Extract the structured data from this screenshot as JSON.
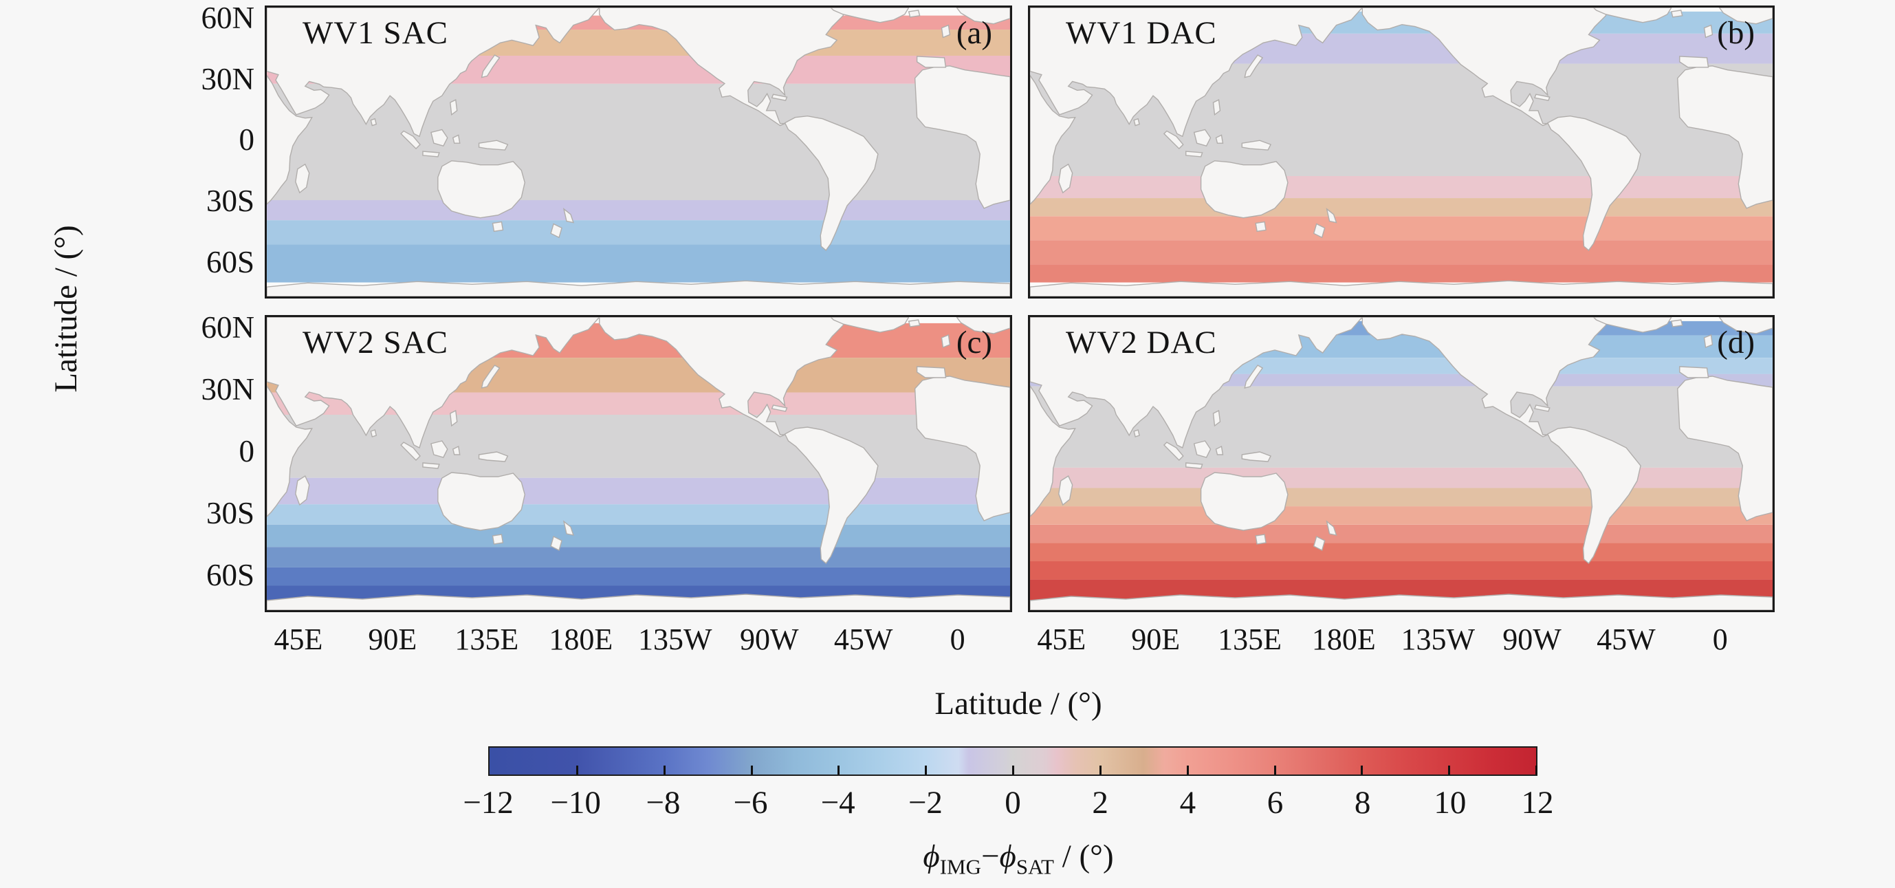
{
  "axes": {
    "y_label": "Latitude / (°)",
    "x_label": "Latitude / (°)",
    "y_ticks": [
      "60N",
      "30N",
      "0",
      "30S",
      "60S"
    ],
    "x_ticks": [
      "45E",
      "90E",
      "135E",
      "180E",
      "135W",
      "90W",
      "45W",
      "0"
    ]
  },
  "chart_data": {
    "type": "heatmap",
    "subtype": "four-panel global map (Pacific-centered) of zonal-mean phase difference, land shown white",
    "lat_range": [
      66,
      -78
    ],
    "lon_ticks_deg_east": [
      45,
      90,
      135,
      180,
      225,
      270,
      315,
      360
    ],
    "panels": [
      {
        "id": "a",
        "title": "WV1 SAC",
        "corner_label": "(a)",
        "bands": [
          {
            "lat_from": 62,
            "lat_to": 55,
            "value": 4,
            "color": "#f0a09e"
          },
          {
            "lat_from": 55,
            "lat_to": 42,
            "value": 2.5,
            "color": "#e5bf9c"
          },
          {
            "lat_from": 42,
            "lat_to": 28,
            "value": 1,
            "color": "#eebac4"
          },
          {
            "lat_from": 28,
            "lat_to": -30,
            "value": 0,
            "color": "#d5d4d5"
          },
          {
            "lat_from": -30,
            "lat_to": -40,
            "value": -1,
            "color": "#c8c4e6"
          },
          {
            "lat_from": -40,
            "lat_to": -52,
            "value": -3,
            "color": "#a6c9e5"
          },
          {
            "lat_from": -52,
            "lat_to": -71,
            "value": -4,
            "color": "#92bbde"
          }
        ]
      },
      {
        "id": "b",
        "title": "WV1 DAC",
        "corner_label": "(b)",
        "bands": [
          {
            "lat_from": 64,
            "lat_to": 53,
            "value": -3,
            "color": "#a6cbe6"
          },
          {
            "lat_from": 53,
            "lat_to": 38,
            "value": -1,
            "color": "#c8c5e5"
          },
          {
            "lat_from": 38,
            "lat_to": -18,
            "value": 0,
            "color": "#d5d4d5"
          },
          {
            "lat_from": -18,
            "lat_to": -29,
            "value": 1,
            "color": "#ebc7ce"
          },
          {
            "lat_from": -29,
            "lat_to": -38,
            "value": 2,
            "color": "#e4c1a3"
          },
          {
            "lat_from": -38,
            "lat_to": -50,
            "value": 4,
            "color": "#f1a694"
          },
          {
            "lat_from": -50,
            "lat_to": -62,
            "value": 5,
            "color": "#ec9486"
          },
          {
            "lat_from": -62,
            "lat_to": -71,
            "value": 6,
            "color": "#e88578"
          }
        ]
      },
      {
        "id": "c",
        "title": "WV2 SAC",
        "corner_label": "(c)",
        "bands": [
          {
            "lat_from": 63,
            "lat_to": 46,
            "value": 5,
            "color": "#ed9083"
          },
          {
            "lat_from": 46,
            "lat_to": 29,
            "value": 3,
            "color": "#e0b591"
          },
          {
            "lat_from": 29,
            "lat_to": 18,
            "value": 1,
            "color": "#eec2c8"
          },
          {
            "lat_from": 18,
            "lat_to": -13,
            "value": 0,
            "color": "#d5d4d5"
          },
          {
            "lat_from": -13,
            "lat_to": -26,
            "value": -1,
            "color": "#c8c4e6"
          },
          {
            "lat_from": -26,
            "lat_to": -36,
            "value": -3,
            "color": "#accee8"
          },
          {
            "lat_from": -36,
            "lat_to": -47,
            "value": -4.5,
            "color": "#8db7da"
          },
          {
            "lat_from": -47,
            "lat_to": -57,
            "value": -6,
            "color": "#7396cb"
          },
          {
            "lat_from": -57,
            "lat_to": -66,
            "value": -7.5,
            "color": "#5c7cc3"
          },
          {
            "lat_from": -66,
            "lat_to": -74,
            "value": -9,
            "color": "#4b67b6"
          }
        ]
      },
      {
        "id": "d",
        "title": "WV2 DAC",
        "corner_label": "(d)",
        "bands": [
          {
            "lat_from": 64,
            "lat_to": 57,
            "value": -5,
            "color": "#7fa6d8"
          },
          {
            "lat_from": 57,
            "lat_to": 46,
            "value": -4,
            "color": "#9bc3e3"
          },
          {
            "lat_from": 46,
            "lat_to": 38,
            "value": -2.5,
            "color": "#b2d1ea"
          },
          {
            "lat_from": 38,
            "lat_to": 32,
            "value": -1.5,
            "color": "#c4c4e4"
          },
          {
            "lat_from": 32,
            "lat_to": -8,
            "value": 0,
            "color": "#d5d4d5"
          },
          {
            "lat_from": -8,
            "lat_to": -18,
            "value": 1,
            "color": "#e9c6cc"
          },
          {
            "lat_from": -18,
            "lat_to": -27,
            "value": 2,
            "color": "#e2c1a4"
          },
          {
            "lat_from": -27,
            "lat_to": -36,
            "value": 3.5,
            "color": "#eeab97"
          },
          {
            "lat_from": -36,
            "lat_to": -45,
            "value": 5,
            "color": "#ea9285"
          },
          {
            "lat_from": -45,
            "lat_to": -54,
            "value": 6.5,
            "color": "#e57868"
          },
          {
            "lat_from": -54,
            "lat_to": -63,
            "value": 8,
            "color": "#de6056"
          },
          {
            "lat_from": -63,
            "lat_to": -74,
            "value": 10,
            "color": "#d14845"
          }
        ]
      }
    ],
    "colorbar": {
      "min": -12,
      "max": 12,
      "tick_values": [
        -12,
        -10,
        -8,
        -6,
        -4,
        -2,
        0,
        2,
        4,
        6,
        8,
        10,
        12
      ],
      "tick_labels": [
        "−12",
        "−10",
        "−8",
        "−6",
        "−4",
        "−2",
        "0",
        "2",
        "4",
        "6",
        "8",
        "10",
        "12"
      ],
      "label_parts": {
        "phi": "ϕ",
        "sub_left": "IMG",
        "minus": "−",
        "sub_right": "SAT",
        "unit": " / (°)"
      },
      "stops": [
        {
          "f": 0.0,
          "c": "#3a50a6"
        },
        {
          "f": 0.083,
          "c": "#4153ab"
        },
        {
          "f": 0.167,
          "c": "#5a73c5"
        },
        {
          "f": 0.208,
          "c": "#6f89d1"
        },
        {
          "f": 0.25,
          "c": "#82a6cc"
        },
        {
          "f": 0.292,
          "c": "#90bada"
        },
        {
          "f": 0.333,
          "c": "#9cc5e2"
        },
        {
          "f": 0.375,
          "c": "#abcfe9"
        },
        {
          "f": 0.417,
          "c": "#bcd8f0"
        },
        {
          "f": 0.448,
          "c": "#cfdcf1"
        },
        {
          "f": 0.458,
          "c": "#c9c5e6"
        },
        {
          "f": 0.49,
          "c": "#d2cfda"
        },
        {
          "f": 0.5,
          "c": "#d4d3d3"
        },
        {
          "f": 0.53,
          "c": "#dfcdd3"
        },
        {
          "f": 0.542,
          "c": "#e8c3cb"
        },
        {
          "f": 0.56,
          "c": "#e6c2b4"
        },
        {
          "f": 0.583,
          "c": "#e2c3a6"
        },
        {
          "f": 0.625,
          "c": "#d8ae8d"
        },
        {
          "f": 0.645,
          "c": "#f0ab9e"
        },
        {
          "f": 0.667,
          "c": "#f1a094"
        },
        {
          "f": 0.708,
          "c": "#ee9288"
        },
        {
          "f": 0.75,
          "c": "#e98279"
        },
        {
          "f": 0.792,
          "c": "#e36e68"
        },
        {
          "f": 0.833,
          "c": "#de5b56"
        },
        {
          "f": 0.875,
          "c": "#d9494a"
        },
        {
          "f": 0.917,
          "c": "#d33b40"
        },
        {
          "f": 0.958,
          "c": "#cc2d37"
        },
        {
          "f": 1.0,
          "c": "#c32431"
        }
      ]
    }
  }
}
